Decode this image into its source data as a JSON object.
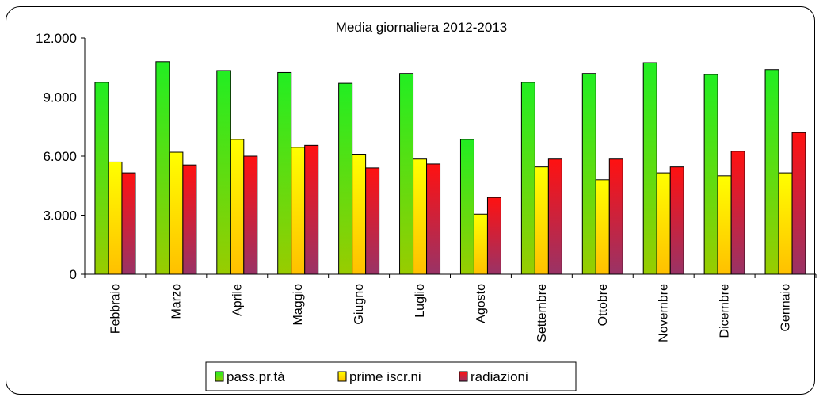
{
  "chart_data": {
    "type": "bar",
    "title": "Media giornaliera 2012-2013",
    "xlabel": "",
    "ylabel": "",
    "ylim": [
      0,
      12000
    ],
    "yticks": [
      "0",
      "3.000",
      "6.000",
      "9.000",
      "12.000"
    ],
    "ytick_values": [
      0,
      3000,
      6000,
      9000,
      12000
    ],
    "grid": false,
    "legend": "bottom",
    "categories": [
      "Febbraio",
      "Marzo",
      "Aprile",
      "Maggio",
      "Giugno",
      "Luglio",
      "Agosto",
      "Settembre",
      "Ottobre",
      "Novembre",
      "Dicembre",
      "Gennaio"
    ],
    "series": [
      {
        "name": "pass.pr.tà",
        "color_top": "#22ee22",
        "color_bottom": "#99cc00",
        "values": [
          9750,
          10800,
          10350,
          10250,
          9700,
          10200,
          6850,
          9750,
          10200,
          10750,
          10150,
          10400
        ]
      },
      {
        "name": "prime iscr.ni",
        "color_top": "#ffff00",
        "color_bottom": "#ffc000",
        "values": [
          5700,
          6200,
          6850,
          6450,
          6100,
          5850,
          3050,
          5450,
          4800,
          5150,
          5000,
          5150
        ]
      },
      {
        "name": "radiazioni",
        "color_top": "#ff1111",
        "color_bottom": "#993366",
        "values": [
          5150,
          5550,
          6000,
          6550,
          5400,
          5600,
          3900,
          5850,
          5850,
          5450,
          6250,
          7200
        ]
      }
    ]
  }
}
